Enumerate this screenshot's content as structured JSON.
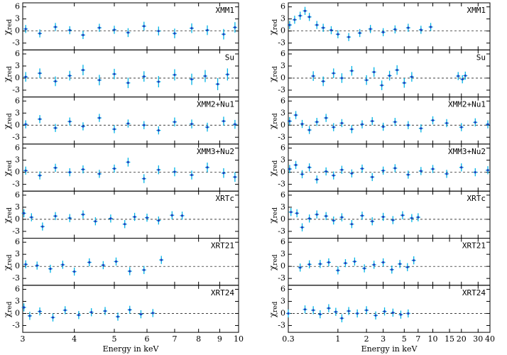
{
  "chart_data": [
    {
      "type": "scatter",
      "label": "XMM1",
      "ylabel": "χ",
      "ylabel_sub": "red",
      "xlim": [
        3,
        10
      ],
      "log_x": true,
      "ylim": [
        -4.7,
        7
      ],
      "yticks": [
        6,
        3,
        0,
        -3
      ],
      "color": "#1f3fbf",
      "error_color": "#00b4e6",
      "x": [
        3.05,
        3.3,
        3.6,
        3.9,
        4.2,
        4.6,
        5.0,
        5.4,
        5.9,
        6.4,
        7.0,
        7.7,
        8.4,
        9.2,
        9.8
      ],
      "values": [
        0.5,
        -0.6,
        1.0,
        0.2,
        -1.0,
        0.8,
        0.3,
        -0.4,
        1.2,
        0.0,
        -0.6,
        0.7,
        0.2,
        -0.8,
        0.9
      ],
      "errors": [
        1.0,
        1.0,
        1.0,
        1.0,
        1.0,
        1.0,
        1.0,
        1.1,
        1.1,
        1.1,
        1.2,
        1.2,
        1.2,
        1.3,
        1.3
      ]
    },
    {
      "type": "scatter",
      "label": "Su",
      "ylabel": "χ",
      "ylabel_sub": "red",
      "xlim": [
        3,
        10
      ],
      "log_x": true,
      "ylim": [
        -4.7,
        7
      ],
      "yticks": [
        6,
        3,
        0,
        -3
      ],
      "color": "#1f3fbf",
      "error_color": "#00b4e6",
      "x": [
        3.05,
        3.3,
        3.6,
        3.9,
        4.2,
        4.6,
        5.0,
        5.4,
        5.9,
        6.4,
        7.0,
        7.7,
        8.3,
        8.9,
        9.4
      ],
      "values": [
        0.3,
        1.2,
        -0.8,
        0.6,
        2.0,
        -0.5,
        1.0,
        -1.2,
        0.4,
        -0.9,
        0.8,
        -0.3,
        0.5,
        -1.5,
        0.9
      ],
      "errors": [
        1.2,
        1.2,
        1.2,
        1.2,
        1.3,
        1.3,
        1.3,
        1.3,
        1.3,
        1.4,
        1.4,
        1.4,
        1.5,
        1.5,
        1.5
      ]
    },
    {
      "type": "scatter",
      "label": "XMM2+Nu1",
      "ylabel": "χ",
      "ylabel_sub": "red",
      "xlim": [
        3,
        10
      ],
      "log_x": true,
      "ylim": [
        -4.7,
        7
      ],
      "yticks": [
        6,
        3,
        0,
        -3
      ],
      "color": "#1f3fbf",
      "error_color": "#00b4e6",
      "x": [
        3.05,
        3.3,
        3.6,
        3.9,
        4.2,
        4.6,
        5.0,
        5.4,
        5.9,
        6.4,
        7.0,
        7.7,
        8.4,
        9.2,
        9.8
      ],
      "values": [
        0.2,
        1.5,
        -0.7,
        0.9,
        -0.3,
        1.8,
        -1.0,
        0.4,
        0.0,
        -1.3,
        0.8,
        0.3,
        -0.5,
        1.0,
        0.2
      ],
      "errors": [
        1.0,
        1.0,
        1.0,
        1.0,
        1.0,
        1.0,
        1.0,
        1.0,
        1.0,
        1.0,
        1.1,
        1.1,
        1.1,
        1.1,
        1.1
      ]
    },
    {
      "type": "scatter",
      "label": "XMM3+Nu2",
      "ylabel": "χ",
      "ylabel_sub": "red",
      "xlim": [
        3,
        10
      ],
      "log_x": true,
      "ylim": [
        -4.7,
        7
      ],
      "yticks": [
        6,
        3,
        0,
        -3
      ],
      "color": "#1f3fbf",
      "error_color": "#00b4e6",
      "x": [
        3.05,
        3.3,
        3.6,
        3.9,
        4.2,
        4.6,
        5.0,
        5.4,
        5.9,
        6.4,
        7.0,
        7.7,
        8.4,
        9.2,
        9.8
      ],
      "values": [
        0.4,
        -0.8,
        1.1,
        0.0,
        0.7,
        -0.4,
        0.9,
        2.5,
        -1.6,
        0.6,
        0.1,
        -0.7,
        1.2,
        -0.2,
        -1.2
      ],
      "errors": [
        1.0,
        1.0,
        1.0,
        1.0,
        1.0,
        1.0,
        1.0,
        1.1,
        1.1,
        1.1,
        1.1,
        1.1,
        1.2,
        1.2,
        1.2
      ]
    },
    {
      "type": "scatter",
      "label": "XRTc",
      "ylabel": "χ",
      "ylabel_sub": "red",
      "xlim": [
        3,
        10
      ],
      "log_x": true,
      "ylim": [
        -4.7,
        7
      ],
      "yticks": [
        6,
        3,
        0,
        -3
      ],
      "color": "#1f3fbf",
      "error_color": "#00b4e6",
      "x": [
        3.02,
        3.15,
        3.35,
        3.6,
        3.9,
        4.2,
        4.5,
        4.9,
        5.3,
        5.6,
        6.0,
        6.4,
        6.9,
        7.3
      ],
      "values": [
        1.5,
        0.5,
        -1.8,
        0.8,
        0.3,
        1.2,
        -0.5,
        0.2,
        -1.2,
        0.6,
        0.4,
        -0.3,
        1.0,
        0.9
      ],
      "errors": [
        1.0,
        1.0,
        1.0,
        1.0,
        1.0,
        1.0,
        1.0,
        1.0,
        1.0,
        1.0,
        1.0,
        1.0,
        1.0,
        1.0
      ]
    },
    {
      "type": "scatter",
      "label": "XRT21",
      "ylabel": "χ",
      "ylabel_sub": "red",
      "xlim": [
        3,
        10
      ],
      "log_x": true,
      "ylim": [
        -4.7,
        7
      ],
      "yticks": [
        6,
        3,
        0,
        -3
      ],
      "color": "#1f3fbf",
      "error_color": "#00b4e6",
      "x": [
        3.05,
        3.25,
        3.5,
        3.75,
        4.0,
        4.35,
        4.7,
        5.05,
        5.45,
        5.9,
        6.5
      ],
      "values": [
        0.5,
        0.2,
        -0.6,
        0.4,
        -1.3,
        1.0,
        0.3,
        1.2,
        -1.2,
        -0.9,
        1.6
      ],
      "errors": [
        1.0,
        1.0,
        1.0,
        1.0,
        1.0,
        1.0,
        1.0,
        1.0,
        1.0,
        1.0,
        1.0
      ]
    },
    {
      "type": "scatter",
      "label": "XRT24",
      "ylabel": "χ",
      "ylabel_sub": "red",
      "xlim": [
        3,
        10
      ],
      "log_x": true,
      "ylim": [
        -4.7,
        7
      ],
      "yticks": [
        6,
        3,
        0,
        -3
      ],
      "color": "#1f3fbf",
      "error_color": "#00b4e6",
      "x": [
        3.02,
        3.12,
        3.3,
        3.55,
        3.8,
        4.1,
        4.4,
        4.75,
        5.1,
        5.45,
        5.8,
        6.2
      ],
      "values": [
        1.5,
        -0.6,
        0.5,
        -1.0,
        0.8,
        -0.4,
        0.3,
        0.6,
        -0.8,
        0.9,
        -0.2,
        0.1
      ],
      "errors": [
        1.0,
        1.0,
        1.0,
        1.0,
        1.0,
        1.0,
        1.0,
        1.0,
        1.0,
        1.0,
        1.0,
        1.0
      ],
      "xlabel": "Energy in keV",
      "xticks": [
        3,
        4,
        5,
        6,
        7,
        8,
        9,
        10
      ]
    },
    {
      "type": "scatter",
      "label": "XMM1",
      "ylabel": "χ",
      "ylabel_sub": "red",
      "xlim": [
        0.3,
        40
      ],
      "log_x": true,
      "ylim": [
        -4.7,
        7
      ],
      "yticks": [
        6,
        3,
        0,
        -3
      ],
      "color": "#1f3fbf",
      "error_color": "#00b4e6",
      "x": [
        0.31,
        0.35,
        0.4,
        0.45,
        0.5,
        0.6,
        0.7,
        0.85,
        1.0,
        1.3,
        1.7,
        2.2,
        3.0,
        4.0,
        5.5,
        7.5,
        9.5
      ],
      "values": [
        1.5,
        2.8,
        3.8,
        5.0,
        3.5,
        1.5,
        0.8,
        0.2,
        -0.8,
        -1.5,
        -0.5,
        0.5,
        -0.3,
        0.4,
        0.8,
        0.3,
        1.0
      ],
      "errors": [
        1.0,
        1.0,
        1.0,
        1.0,
        1.0,
        1.0,
        1.0,
        1.0,
        1.0,
        1.0,
        1.0,
        1.0,
        1.0,
        1.0,
        1.0,
        1.0,
        1.0
      ]
    },
    {
      "type": "scatter",
      "label": "Su",
      "ylabel": "χ",
      "ylabel_sub": "red",
      "xlim": [
        0.3,
        40
      ],
      "log_x": true,
      "ylim": [
        -4.7,
        7
      ],
      "yticks": [
        6,
        3,
        0,
        -3
      ],
      "color": "#1f3fbf",
      "error_color": "#00b4e6",
      "x": [
        0.55,
        0.7,
        0.9,
        1.1,
        1.4,
        2.0,
        2.4,
        2.9,
        3.5,
        4.2,
        5.0,
        6.0,
        18.5,
        20.5,
        22.0
      ],
      "values": [
        0.5,
        -0.8,
        1.2,
        0.0,
        1.8,
        -0.5,
        1.5,
        -1.8,
        0.6,
        2.0,
        -1.2,
        0.3,
        0.5,
        -0.3,
        0.6
      ],
      "errors": [
        1.2,
        1.2,
        1.2,
        1.2,
        1.2,
        1.2,
        1.2,
        1.2,
        1.2,
        1.2,
        1.2,
        1.2,
        1.0,
        1.0,
        1.0
      ]
    },
    {
      "type": "scatter",
      "label": "XMM2+Nu1",
      "ylabel": "χ",
      "ylabel_sub": "red",
      "xlim": [
        0.3,
        40
      ],
      "log_x": true,
      "ylim": [
        -4.7,
        7
      ],
      "yticks": [
        6,
        3,
        0,
        -3
      ],
      "color": "#1f3fbf",
      "error_color": "#00b4e6",
      "x": [
        0.31,
        0.36,
        0.42,
        0.5,
        0.6,
        0.75,
        0.9,
        1.1,
        1.4,
        1.8,
        2.3,
        3.0,
        4.0,
        5.5,
        7.5,
        10,
        14,
        20,
        28,
        38
      ],
      "values": [
        1.0,
        2.5,
        0.3,
        -1.2,
        0.8,
        1.8,
        -0.5,
        0.5,
        -1.0,
        0.2,
        1.0,
        -0.4,
        0.8,
        0.0,
        -0.8,
        1.2,
        0.5,
        -0.5,
        0.7,
        0.2
      ],
      "errors": [
        1.0,
        1.0,
        1.0,
        1.0,
        1.0,
        1.0,
        1.0,
        1.0,
        1.0,
        1.0,
        1.0,
        1.0,
        1.0,
        1.0,
        1.0,
        1.0,
        1.0,
        1.0,
        1.0,
        1.0
      ]
    },
    {
      "type": "scatter",
      "label": "XMM3+Nu2",
      "ylabel": "χ",
      "ylabel_sub": "red",
      "xlim": [
        0.3,
        40
      ],
      "log_x": true,
      "ylim": [
        -4.7,
        7
      ],
      "yticks": [
        6,
        3,
        0,
        -3
      ],
      "color": "#1f3fbf",
      "error_color": "#00b4e6",
      "x": [
        0.31,
        0.36,
        0.42,
        0.5,
        0.6,
        0.75,
        0.9,
        1.1,
        1.4,
        1.8,
        2.3,
        3.0,
        4.0,
        5.5,
        7.5,
        10,
        14,
        20,
        28,
        38
      ],
      "values": [
        0.8,
        1.8,
        -0.5,
        1.2,
        -1.8,
        0.2,
        -0.8,
        0.6,
        -0.3,
        0.9,
        -1.2,
        0.4,
        1.0,
        -0.6,
        0.3,
        0.8,
        -0.4,
        1.2,
        0.0,
        0.5
      ],
      "errors": [
        1.0,
        1.0,
        1.0,
        1.0,
        1.0,
        1.0,
        1.0,
        1.0,
        1.0,
        1.0,
        1.0,
        1.0,
        1.0,
        1.0,
        1.0,
        1.0,
        1.0,
        1.0,
        1.0,
        1.0
      ]
    },
    {
      "type": "scatter",
      "label": "XRTc",
      "ylabel": "χ",
      "ylabel_sub": "red",
      "xlim": [
        0.3,
        40
      ],
      "log_x": true,
      "ylim": [
        -4.7,
        7
      ],
      "yticks": [
        6,
        3,
        0,
        -3
      ],
      "color": "#1f3fbf",
      "error_color": "#00b4e6",
      "x": [
        0.32,
        0.37,
        0.42,
        0.5,
        0.6,
        0.75,
        0.9,
        1.1,
        1.4,
        1.8,
        2.3,
        3.0,
        3.8,
        4.8,
        6.0,
        7.0
      ],
      "values": [
        1.8,
        1.5,
        -2.0,
        0.2,
        1.2,
        0.8,
        -0.3,
        0.5,
        -1.2,
        0.9,
        -0.5,
        0.6,
        -0.2,
        1.0,
        0.3,
        0.5
      ],
      "errors": [
        1.0,
        1.0,
        1.0,
        1.0,
        1.0,
        1.0,
        1.0,
        1.0,
        1.0,
        1.0,
        1.0,
        1.0,
        1.0,
        1.0,
        1.0,
        1.0
      ]
    },
    {
      "type": "scatter",
      "label": "XRT21",
      "ylabel": "χ",
      "ylabel_sub": "red",
      "xlim": [
        0.3,
        40
      ],
      "log_x": true,
      "ylim": [
        -4.7,
        7
      ],
      "yticks": [
        6,
        3,
        0,
        -3
      ],
      "color": "#1f3fbf",
      "error_color": "#00b4e6",
      "x": [
        0.4,
        0.5,
        0.65,
        0.8,
        1.0,
        1.2,
        1.5,
        1.9,
        2.4,
        3.0,
        3.7,
        4.5,
        5.4,
        6.3
      ],
      "values": [
        -0.3,
        0.5,
        0.6,
        1.0,
        -1.0,
        0.8,
        1.2,
        -0.5,
        0.4,
        1.0,
        -0.8,
        0.6,
        -0.2,
        1.5
      ],
      "errors": [
        1.0,
        1.0,
        1.0,
        1.0,
        1.0,
        1.0,
        1.0,
        1.0,
        1.0,
        1.0,
        1.0,
        1.0,
        1.0,
        1.0
      ]
    },
    {
      "type": "scatter",
      "label": "XRT24",
      "ylabel": "χ",
      "ylabel_sub": "red",
      "xlim": [
        0.3,
        40
      ],
      "log_x": true,
      "ylim": [
        -4.7,
        7
      ],
      "yticks": [
        6,
        3,
        0,
        -3
      ],
      "color": "#1f3fbf",
      "error_color": "#00b4e6",
      "x": [
        0.3,
        0.45,
        0.55,
        0.65,
        0.8,
        0.95,
        1.1,
        1.3,
        1.6,
        2.0,
        2.5,
        3.1,
        3.8,
        4.6,
        5.5
      ],
      "values": [
        0.0,
        1.0,
        0.8,
        -0.2,
        1.3,
        0.4,
        -1.2,
        0.6,
        0.0,
        0.8,
        -0.5,
        0.5,
        0.2,
        -0.3,
        0.0
      ],
      "errors": [
        1.0,
        1.0,
        1.0,
        1.0,
        1.0,
        1.0,
        1.0,
        1.0,
        1.0,
        1.0,
        1.0,
        1.0,
        1.0,
        1.0,
        1.0
      ],
      "xlabel": "Energy in keV",
      "xticks": [
        {
          "value": 0.3,
          "label": "0.3"
        },
        1,
        2,
        3,
        5,
        7,
        10,
        15,
        20,
        30,
        40
      ]
    }
  ]
}
